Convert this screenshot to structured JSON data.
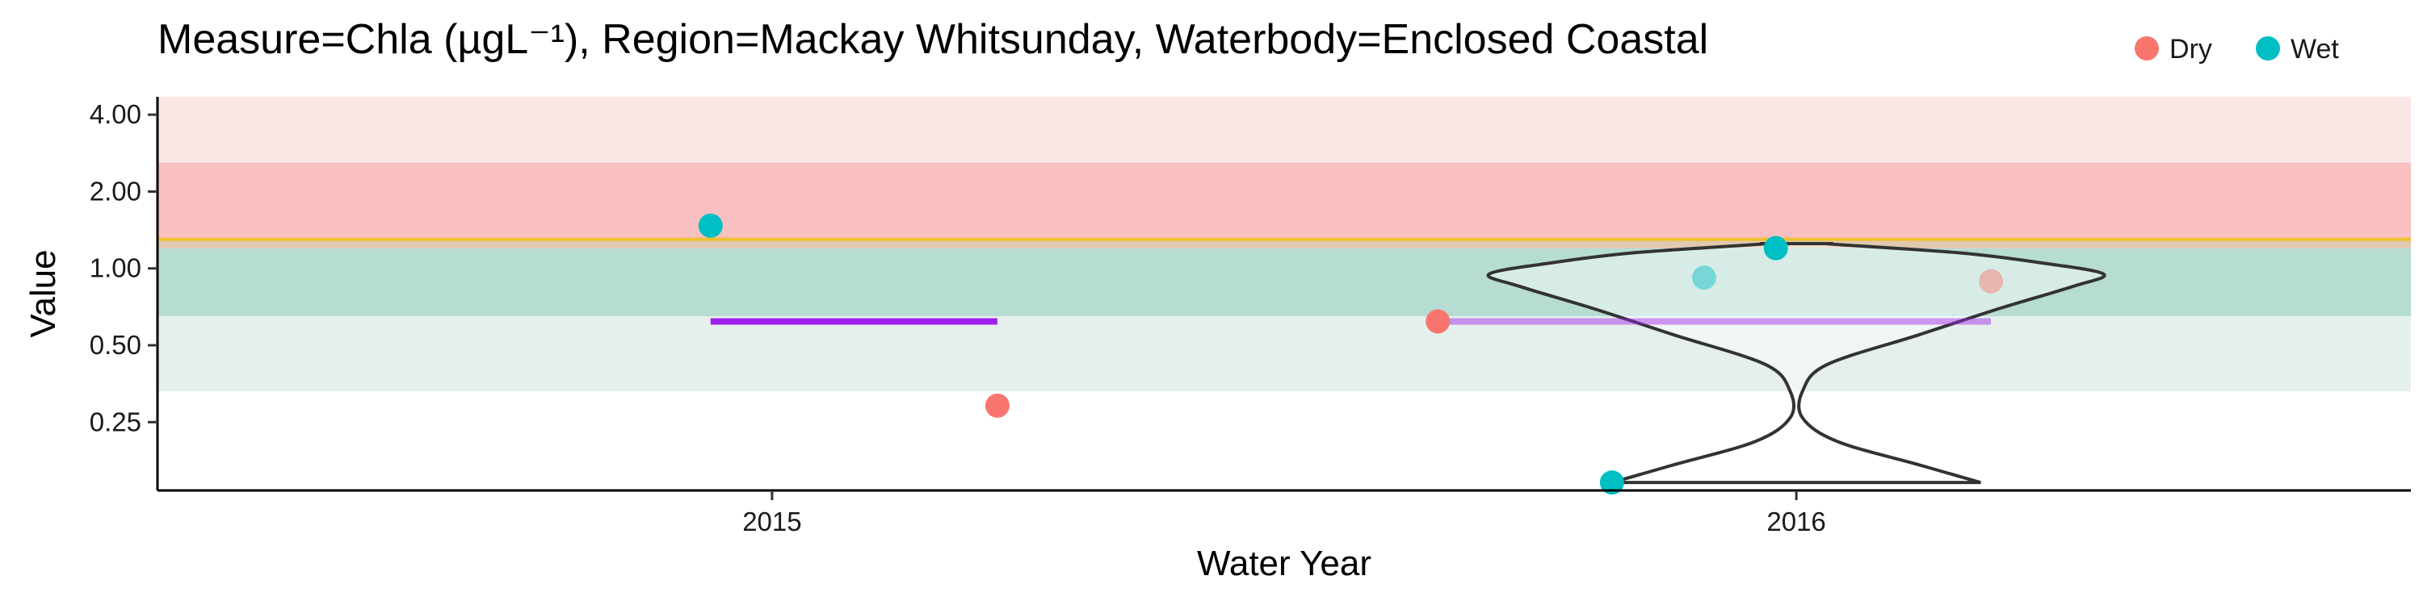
{
  "chart_data": {
    "type": "scatter",
    "title": "Measure=Chla (µgL⁻¹), Region=Mackay Whitsunday, Waterbody=Enclosed Coastal",
    "xlabel": "Water Year",
    "ylabel": "Value",
    "y_scale": "log",
    "ylim": [
      0.135,
      4.7
    ],
    "yticks": [
      0.25,
      0.5,
      1.0,
      2.0,
      4.0
    ],
    "ytick_labels": [
      "0.25",
      "0.50",
      "1.00",
      "2.00",
      "4.00"
    ],
    "categories": [
      "2015",
      "2016"
    ],
    "grid": false,
    "legend_position": "top-right",
    "legend": [
      {
        "name": "Dry",
        "color": "#F8766D"
      },
      {
        "name": "Wet",
        "color": "#00BFC4"
      }
    ],
    "guideline": 1.3,
    "guideline_color": "#F0C030",
    "bands": [
      {
        "from": 0.33,
        "to": 0.65,
        "color": "#E5F0EC"
      },
      {
        "from": 0.65,
        "to": 1.2,
        "color": "#B7DCD1"
      },
      {
        "from": 1.2,
        "to": 1.3,
        "color": "#E0C9AE"
      },
      {
        "from": 1.3,
        "to": 2.6,
        "color": "#F8C0C0"
      },
      {
        "from": 2.6,
        "to": 4.7,
        "color": "#FBE6E6"
      }
    ],
    "series": [
      {
        "name": "Dry",
        "color": "#F8766D",
        "points": [
          {
            "x": "2015",
            "offset": 0.22,
            "y": 0.29,
            "faded": false
          },
          {
            "x": "2016",
            "offset": -0.35,
            "y": 0.62,
            "faded": false
          },
          {
            "x": "2016",
            "offset": 0.19,
            "y": 0.89,
            "faded": true
          }
        ]
      },
      {
        "name": "Wet",
        "color": "#00BFC4",
        "points": [
          {
            "x": "2015",
            "offset": -0.06,
            "y": 1.47,
            "faded": false
          },
          {
            "x": "2016",
            "offset": -0.18,
            "y": 0.145,
            "faded": false
          },
          {
            "x": "2016",
            "offset": -0.09,
            "y": 0.92,
            "faded": true
          },
          {
            "x": "2016",
            "offset": -0.02,
            "y": 1.2,
            "faded": false
          }
        ]
      }
    ],
    "medians": [
      {
        "x": "2015",
        "from": -0.06,
        "to": 0.22,
        "y": 0.62,
        "color": "#A020F0",
        "faded": false
      },
      {
        "x": "2016",
        "from": -0.35,
        "to": 0.19,
        "y": 0.62,
        "color": "#A020F0",
        "faded": true
      }
    ],
    "violin": {
      "x": "2016",
      "color": "#333333",
      "profile": [
        {
          "y": 0.145,
          "w": 0.18
        },
        {
          "y": 0.17,
          "w": 0.12
        },
        {
          "y": 0.21,
          "w": 0.04
        },
        {
          "y": 0.26,
          "w": 0.006
        },
        {
          "y": 0.33,
          "w": 0.006
        },
        {
          "y": 0.42,
          "w": 0.03
        },
        {
          "y": 0.55,
          "w": 0.12
        },
        {
          "y": 0.7,
          "w": 0.2
        },
        {
          "y": 0.85,
          "w": 0.27
        },
        {
          "y": 0.95,
          "w": 0.3
        },
        {
          "y": 1.05,
          "w": 0.24
        },
        {
          "y": 1.15,
          "w": 0.16
        },
        {
          "y": 1.24,
          "w": 0.04
        },
        {
          "y": 1.25,
          "w": 0.035
        }
      ]
    }
  }
}
